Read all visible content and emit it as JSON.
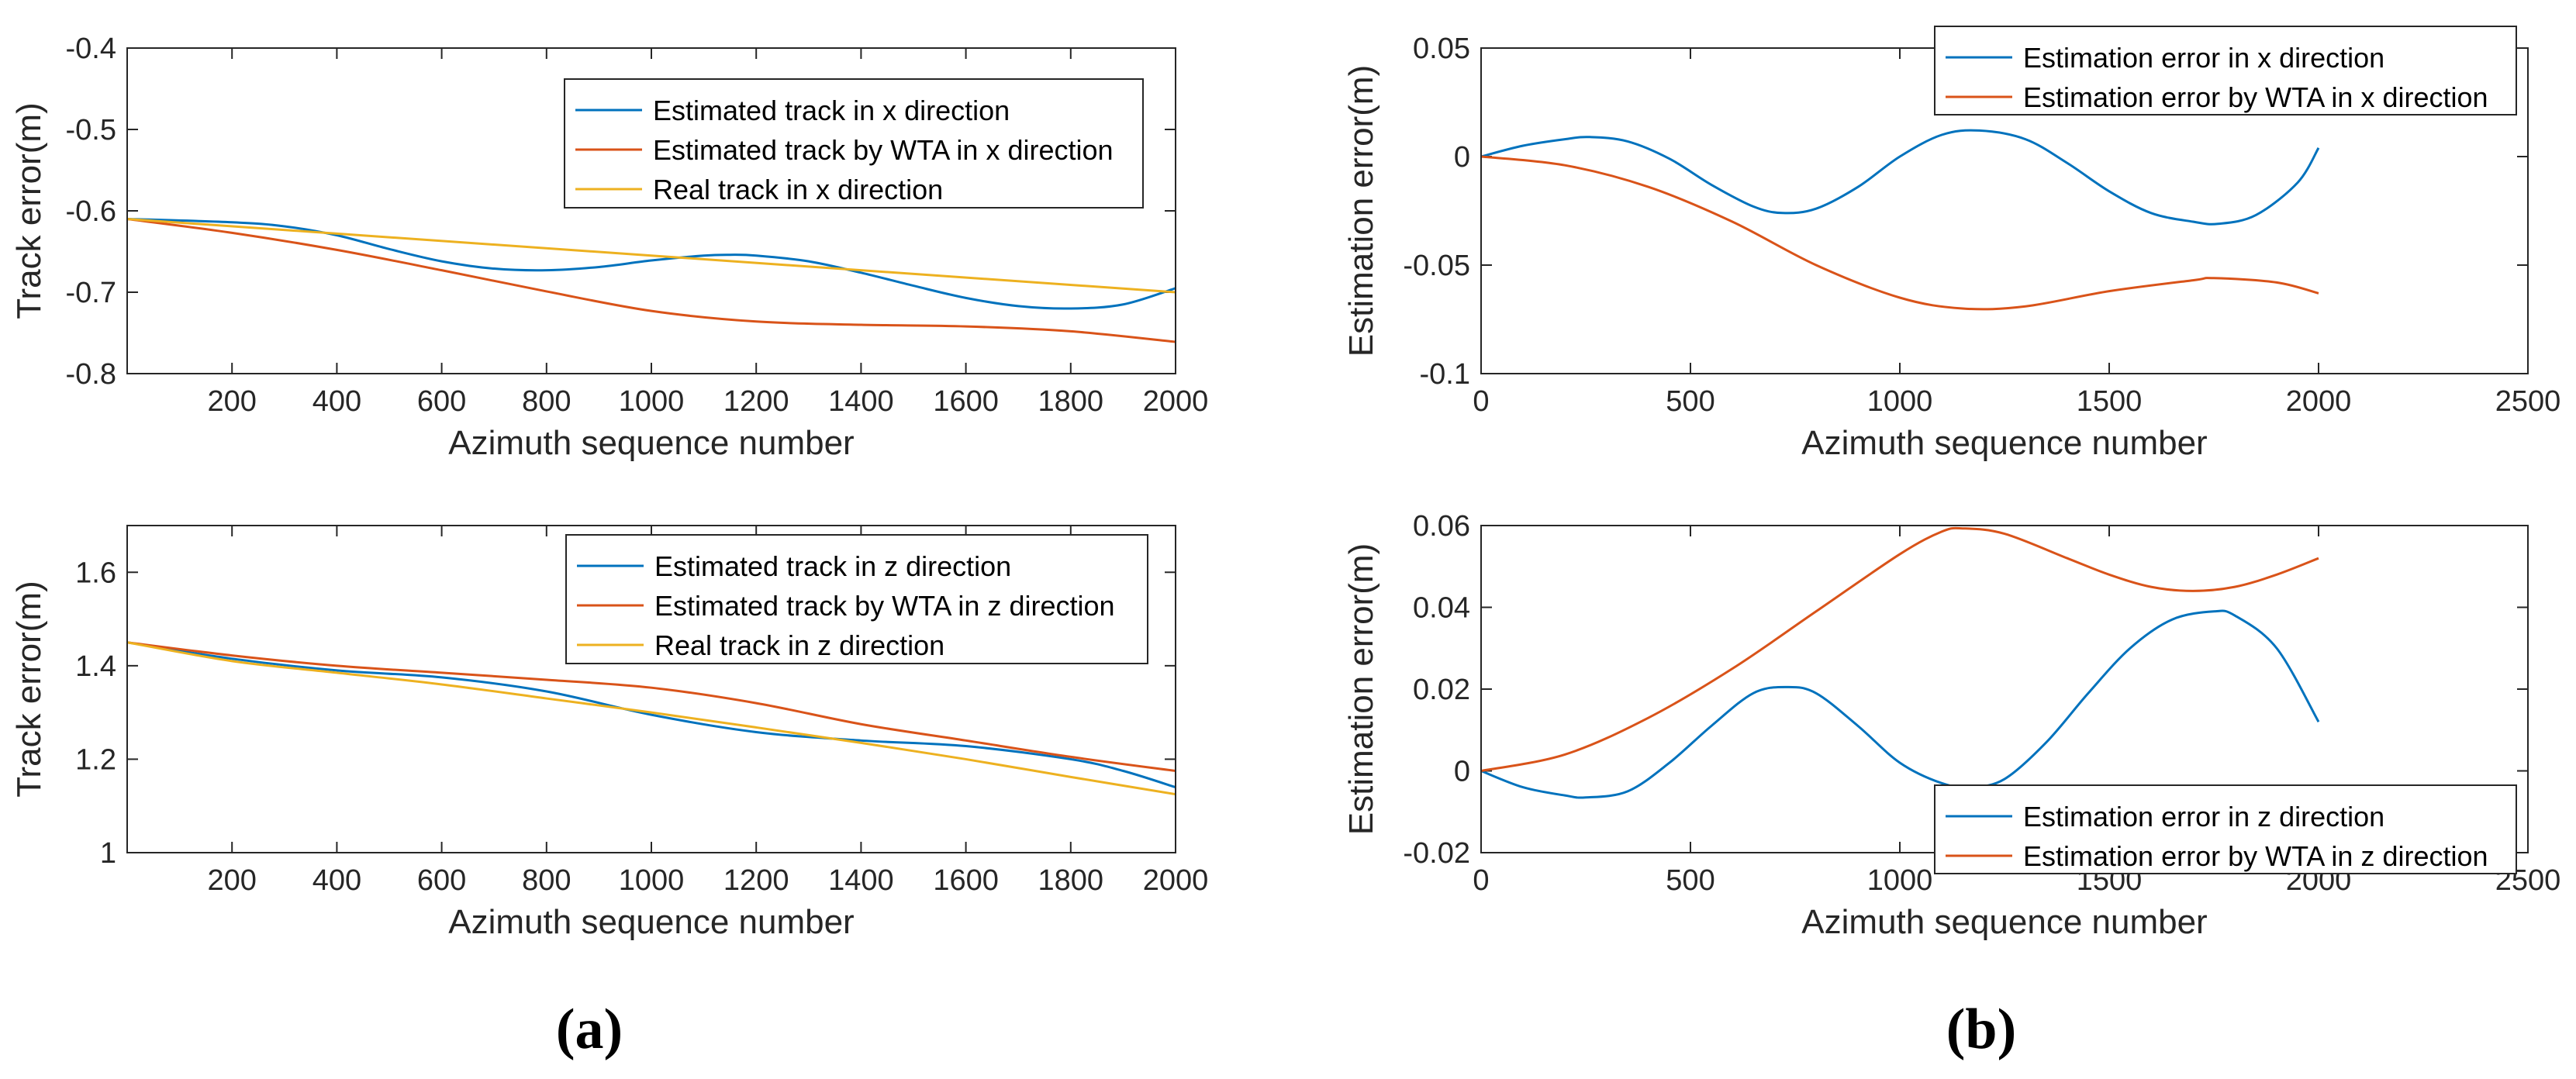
{
  "figure": {
    "panel_labels": [
      "(a)",
      "(b)"
    ]
  },
  "colors": {
    "blue": "#0072bd",
    "orange": "#d95319",
    "yellow": "#edb120",
    "axis": "#262626"
  },
  "chart_data": [
    {
      "id": "a-top",
      "type": "line",
      "title": "",
      "xlabel": "Azimuth sequence number",
      "ylabel": "Track error(m)",
      "xlim": [
        0,
        2000
      ],
      "ylim": [
        -0.8,
        -0.4
      ],
      "xticks": [
        200,
        400,
        600,
        800,
        1000,
        1200,
        1400,
        1600,
        1800,
        2000
      ],
      "xtick_labels": [
        "200",
        "400",
        "600",
        "800",
        "1000",
        "1200",
        "1400",
        "1600",
        "1800",
        "2000"
      ],
      "yticks": [
        -0.8,
        -0.7,
        -0.6,
        -0.5,
        -0.4
      ],
      "ytick_labels": [
        "-0.8",
        "-0.7",
        "-0.6",
        "-0.5",
        "-0.4"
      ],
      "legend_position": "top-right",
      "series": [
        {
          "name": "Estimated track in x direction",
          "color": "blue",
          "x": [
            0,
            200,
            300,
            400,
            500,
            600,
            700,
            800,
            900,
            1000,
            1100,
            1150,
            1200,
            1300,
            1400,
            1500,
            1600,
            1700,
            1800,
            1900,
            2000
          ],
          "y": [
            -0.61,
            -0.614,
            -0.619,
            -0.63,
            -0.647,
            -0.662,
            -0.671,
            -0.673,
            -0.669,
            -0.661,
            -0.655,
            -0.654,
            -0.655,
            -0.662,
            -0.676,
            -0.692,
            -0.707,
            -0.717,
            -0.72,
            -0.715,
            -0.695
          ]
        },
        {
          "name": "Estimated track by WTA in x direction",
          "color": "orange",
          "x": [
            0,
            200,
            400,
            600,
            800,
            1000,
            1200,
            1400,
            1600,
            1800,
            2000
          ],
          "y": [
            -0.61,
            -0.627,
            -0.648,
            -0.673,
            -0.699,
            -0.723,
            -0.736,
            -0.74,
            -0.742,
            -0.748,
            -0.761
          ]
        },
        {
          "name": "Real track in x direction",
          "color": "yellow",
          "x": [
            0,
            2000
          ],
          "y": [
            -0.61,
            -0.7
          ]
        }
      ]
    },
    {
      "id": "a-bottom",
      "type": "line",
      "title": "",
      "xlabel": "Azimuth sequence number",
      "ylabel": "Track error(m)",
      "xlim": [
        0,
        2000
      ],
      "ylim": [
        1,
        1.7
      ],
      "xticks": [
        200,
        400,
        600,
        800,
        1000,
        1200,
        1400,
        1600,
        1800,
        2000
      ],
      "xtick_labels": [
        "200",
        "400",
        "600",
        "800",
        "1000",
        "1200",
        "1400",
        "1600",
        "1800",
        "2000"
      ],
      "yticks": [
        1,
        1.2,
        1.4,
        1.6
      ],
      "ytick_labels": [
        "1",
        "1.2",
        "1.4",
        "1.6"
      ],
      "legend_position": "top-right",
      "series": [
        {
          "name": "Estimated track in z direction",
          "color": "blue",
          "x": [
            0,
            200,
            400,
            600,
            800,
            1000,
            1200,
            1400,
            1600,
            1800,
            1900,
            2000
          ],
          "y": [
            1.45,
            1.415,
            1.39,
            1.375,
            1.345,
            1.295,
            1.258,
            1.24,
            1.228,
            1.2,
            1.175,
            1.14
          ]
        },
        {
          "name": "Estimated track by WTA in z direction",
          "color": "orange",
          "x": [
            0,
            200,
            400,
            600,
            800,
            1000,
            1200,
            1400,
            1600,
            1800,
            2000
          ],
          "y": [
            1.45,
            1.422,
            1.4,
            1.385,
            1.37,
            1.353,
            1.32,
            1.275,
            1.24,
            1.205,
            1.175
          ]
        },
        {
          "name": "Real track in z direction",
          "color": "yellow",
          "x": [
            0,
            200,
            400,
            600,
            800,
            1000,
            1200,
            1400,
            1600,
            1800,
            2000
          ],
          "y": [
            1.45,
            1.41,
            1.385,
            1.36,
            1.33,
            1.3,
            1.268,
            1.235,
            1.2,
            1.162,
            1.125
          ]
        }
      ]
    },
    {
      "id": "b-top",
      "type": "line",
      "title": "",
      "xlabel": "Azimuth sequence number",
      "ylabel": "Estimation error(m)",
      "xlim": [
        0,
        2500
      ],
      "ylim": [
        -0.1,
        0.05
      ],
      "xticks": [
        0,
        500,
        1000,
        1500,
        2000,
        2500
      ],
      "xtick_labels": [
        "0",
        "500",
        "1000",
        "1500",
        "2000",
        "2500"
      ],
      "yticks": [
        -0.1,
        -0.05,
        0,
        0.05
      ],
      "ytick_labels": [
        "-0.1",
        "-0.05",
        "0",
        "0.05"
      ],
      "legend_position": "top-right",
      "series": [
        {
          "name": "Estimation error in x direction",
          "color": "blue",
          "x": [
            0,
            100,
            200,
            260,
            350,
            450,
            550,
            650,
            720,
            800,
            900,
            1000,
            1100,
            1190,
            1300,
            1400,
            1500,
            1600,
            1700,
            1760,
            1850,
            1950,
            2000
          ],
          "y": [
            0,
            0.005,
            0.008,
            0.009,
            0.007,
            -0.001,
            -0.013,
            -0.023,
            -0.026,
            -0.024,
            -0.014,
            0,
            0.01,
            0.012,
            0.008,
            -0.003,
            -0.016,
            -0.026,
            -0.03,
            -0.031,
            -0.027,
            -0.012,
            0.004
          ]
        },
        {
          "name": "Estimation error by WTA in x direction",
          "color": "orange",
          "x": [
            0,
            200,
            400,
            600,
            800,
            1000,
            1150,
            1300,
            1500,
            1700,
            1750,
            1900,
            2000
          ],
          "y": [
            0,
            -0.004,
            -0.014,
            -0.03,
            -0.05,
            -0.065,
            -0.07,
            -0.069,
            -0.062,
            -0.057,
            -0.056,
            -0.058,
            -0.063
          ]
        }
      ]
    },
    {
      "id": "b-bottom",
      "type": "line",
      "title": "",
      "xlabel": "Azimuth sequence number",
      "ylabel": "Estimation error(m)",
      "xlim": [
        0,
        2500
      ],
      "ylim": [
        -0.02,
        0.06
      ],
      "xticks": [
        0,
        500,
        1000,
        1500,
        2000,
        2500
      ],
      "xtick_labels": [
        "0",
        "500",
        "1000",
        "1500",
        "2000",
        "2500"
      ],
      "yticks": [
        -0.02,
        0,
        0.02,
        0.04,
        0.06
      ],
      "ytick_labels": [
        "-0.02",
        "0",
        "0.02",
        "0.04",
        "0.06"
      ],
      "legend_position": "bottom-right",
      "series": [
        {
          "name": "Estimation error in z direction",
          "color": "blue",
          "x": [
            0,
            100,
            200,
            250,
            350,
            450,
            550,
            650,
            730,
            800,
            900,
            1000,
            1100,
            1170,
            1250,
            1350,
            1450,
            1550,
            1650,
            1750,
            1800,
            1900,
            2000
          ],
          "y": [
            0,
            -0.004,
            -0.006,
            -0.0065,
            -0.005,
            0.002,
            0.011,
            0.019,
            0.0205,
            0.019,
            0.011,
            0.002,
            -0.003,
            -0.004,
            -0.002,
            0.007,
            0.019,
            0.03,
            0.037,
            0.039,
            0.038,
            0.03,
            0.012
          ]
        },
        {
          "name": "Estimation error by WTA in z direction",
          "color": "orange",
          "x": [
            0,
            200,
            400,
            600,
            800,
            1000,
            1100,
            1150,
            1250,
            1400,
            1500,
            1600,
            1700,
            1800,
            1900,
            2000
          ],
          "y": [
            0,
            0.004,
            0.013,
            0.025,
            0.039,
            0.053,
            0.0585,
            0.0593,
            0.058,
            0.052,
            0.048,
            0.045,
            0.044,
            0.045,
            0.048,
            0.052
          ]
        }
      ]
    }
  ]
}
